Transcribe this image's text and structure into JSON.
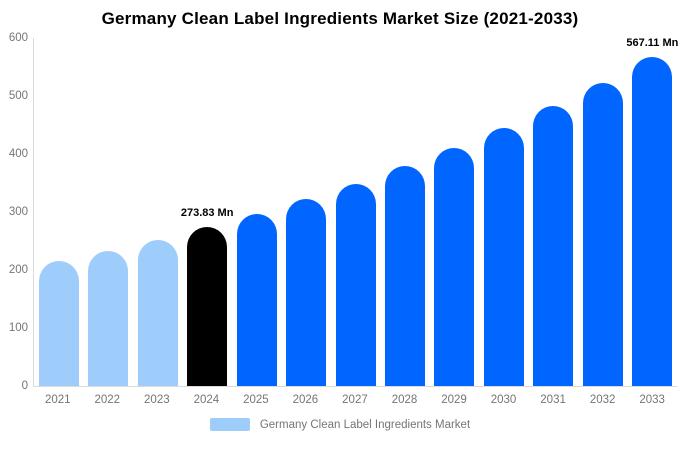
{
  "title": "Germany Clean Label Ingredients Market Size (2021-2033)",
  "legend": {
    "label": "Germany Clean Label Ingredients Market",
    "swatch_color": "#9ECDFC"
  },
  "colors": {
    "historical": "#9ECDFC",
    "base": "#000000",
    "forecast": "#0066FF",
    "axis_text": "#757575",
    "axis_line": "#DADADA",
    "annotation_text": "#000000",
    "background": "#FFFFFF"
  },
  "chart_data": {
    "type": "bar",
    "title": "Germany Clean Label Ingredients Market Size (2021-2033)",
    "series_name": "Germany Clean Label Ingredients Market",
    "categories": [
      "2021",
      "2022",
      "2023",
      "2024",
      "2025",
      "2026",
      "2027",
      "2028",
      "2029",
      "2030",
      "2031",
      "2032",
      "2033"
    ],
    "values": [
      215,
      233,
      252.5,
      273.83,
      297,
      322,
      349,
      378.5,
      410.5,
      445,
      482.5,
      523,
      567.11
    ],
    "bar_roles": [
      "historical",
      "historical",
      "historical",
      "base",
      "forecast",
      "forecast",
      "forecast",
      "forecast",
      "forecast",
      "forecast",
      "forecast",
      "forecast",
      "forecast"
    ],
    "unit": "Mn",
    "xlabel": "",
    "ylabel": "",
    "ylim": [
      0,
      600
    ],
    "y_ticks": [
      0,
      100,
      200,
      300,
      400,
      500,
      600
    ],
    "grid": false,
    "legend_position": "bottom",
    "annotations": [
      {
        "category": "2024",
        "text": "273.83 Mn"
      },
      {
        "category": "2033",
        "text": "567.11 Mn"
      }
    ]
  }
}
